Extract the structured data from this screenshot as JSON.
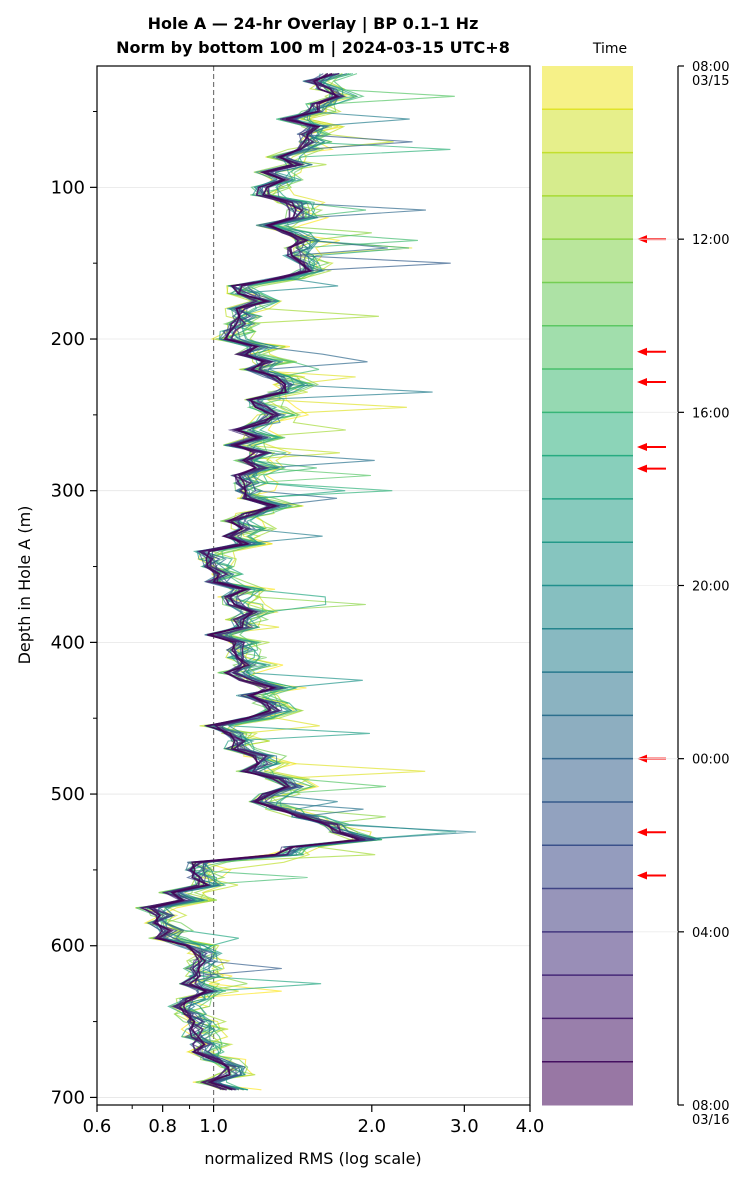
{
  "chart_data": {
    "type": "line",
    "title": "Hole A — 24-hr Overlay  |  BP 0.1–1 Hz",
    "subtitle": "Norm by bottom 100 m  |  2024-03-15 UTC+8",
    "xlabel": "normalized RMS  (log scale)",
    "ylabel": "Depth in Hole A (m)",
    "x_scale": "log",
    "xlim": [
      0.6,
      4.0
    ],
    "ylim": [
      705,
      20
    ],
    "x_ticks": [
      0.6,
      0.8,
      1.0,
      2.0,
      3.0,
      4.0
    ],
    "x_tick_labels": [
      "0.6",
      "0.8",
      "1.0",
      "2.0",
      "3.0",
      "4.0"
    ],
    "y_ticks": [
      100,
      200,
      300,
      400,
      500,
      600,
      700
    ],
    "y_tick_labels": [
      "100",
      "200",
      "300",
      "400",
      "500",
      "600",
      "700"
    ],
    "reference_line": {
      "x": 1.0,
      "style": "dashed"
    },
    "grid": "horizontal",
    "series_count": 24,
    "colormap": "viridis-reversed",
    "depth_step_m": 5,
    "series_profile": [
      {
        "depth": 25,
        "rms": 1.62
      },
      {
        "depth": 40,
        "rms": 1.55
      },
      {
        "depth": 60,
        "rms": 1.44
      },
      {
        "depth": 80,
        "rms": 1.38
      },
      {
        "depth": 100,
        "rms": 1.3
      },
      {
        "depth": 125,
        "rms": 1.35
      },
      {
        "depth": 150,
        "rms": 1.52
      },
      {
        "depth": 165,
        "rms": 1.12
      },
      {
        "depth": 185,
        "rms": 1.2
      },
      {
        "depth": 200,
        "rms": 1.05
      },
      {
        "depth": 225,
        "rms": 1.3
      },
      {
        "depth": 250,
        "rms": 1.2
      },
      {
        "depth": 275,
        "rms": 1.18
      },
      {
        "depth": 300,
        "rms": 1.16
      },
      {
        "depth": 325,
        "rms": 1.2
      },
      {
        "depth": 345,
        "rms": 1.02
      },
      {
        "depth": 370,
        "rms": 1.08
      },
      {
        "depth": 400,
        "rms": 1.1
      },
      {
        "depth": 420,
        "rms": 1.12
      },
      {
        "depth": 440,
        "rms": 1.25
      },
      {
        "depth": 460,
        "rms": 1.05
      },
      {
        "depth": 490,
        "rms": 1.25
      },
      {
        "depth": 510,
        "rms": 1.3
      },
      {
        "depth": 530,
        "rms": 1.85
      },
      {
        "depth": 545,
        "rms": 1.0
      },
      {
        "depth": 560,
        "rms": 0.9
      },
      {
        "depth": 580,
        "rms": 0.75
      },
      {
        "depth": 600,
        "rms": 0.92
      },
      {
        "depth": 620,
        "rms": 0.85
      },
      {
        "depth": 640,
        "rms": 0.95
      },
      {
        "depth": 660,
        "rms": 0.88
      },
      {
        "depth": 680,
        "rms": 1.0
      },
      {
        "depth": 695,
        "rms": 1.05
      }
    ],
    "colorbar": {
      "label": "Time",
      "ticks": [
        {
          "label": "08:00",
          "sublabel": "03/15",
          "hour": 0
        },
        {
          "label": "12:00",
          "hour": 4
        },
        {
          "label": "16:00",
          "hour": 8
        },
        {
          "label": "20:00",
          "hour": 12
        },
        {
          "label": "00:00",
          "hour": 16
        },
        {
          "label": "04:00",
          "hour": 20
        },
        {
          "label": "08:00",
          "sublabel": "03/16",
          "hour": 24
        }
      ],
      "bands": 24,
      "arrow_hours": [
        4.0,
        6.6,
        7.3,
        8.8,
        9.3,
        16.0,
        17.7,
        18.7
      ],
      "arrow_color": "#ff0000"
    }
  }
}
